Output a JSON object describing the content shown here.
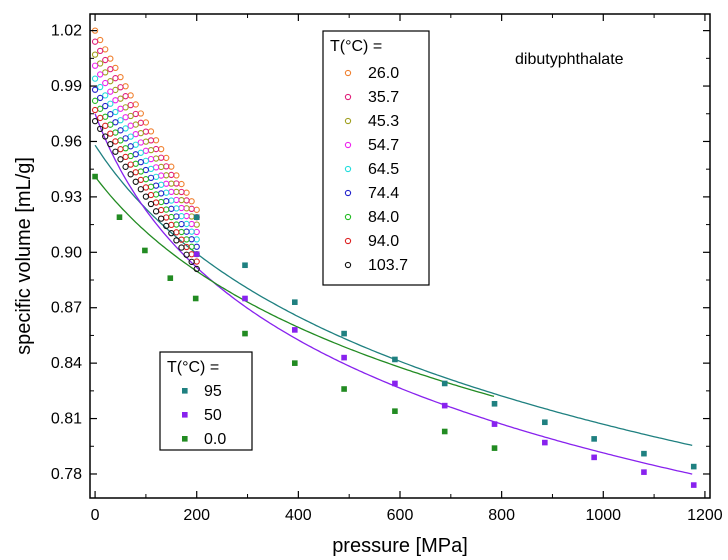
{
  "chart_data": {
    "type": "scatter",
    "title": "",
    "annotation": "dibutyphthalate",
    "xlabel": "pressure  [MPa]",
    "ylabel": "specific volume [mL/g]",
    "xlim": [
      -10,
      1210
    ],
    "ylim": [
      0.767,
      1.029
    ],
    "xticks": [
      0,
      200,
      400,
      600,
      800,
      1000,
      1200
    ],
    "yticks": [
      0.78,
      0.81,
      0.84,
      0.87,
      0.9,
      0.93,
      0.96,
      0.99,
      1.02
    ],
    "ytick_labels": [
      "0.78",
      "0.81",
      "0.84",
      "0.87",
      "0.90",
      "0.93",
      "0.96",
      "0.99",
      "1.02"
    ],
    "grid": false,
    "legends": [
      {
        "title": "T(°C) =",
        "placement": "top-center",
        "entries": [
          "26.0",
          "35.7",
          "45.3",
          "54.7",
          "64.5",
          "74.4",
          "84.0",
          "94.0",
          "103.7"
        ]
      },
      {
        "title": "T(°C) =",
        "placement": "bottom-left",
        "entries": [
          "95",
          "50",
          "0.0"
        ]
      }
    ],
    "open_circle_series": [
      {
        "name": "26.0",
        "color": "#f08030",
        "v0": 1.02,
        "v200": 0.923
      },
      {
        "name": "35.7",
        "color": "#e0207a",
        "v0": 1.014,
        "v200": 0.919
      },
      {
        "name": "45.3",
        "color": "#a0a020",
        "v0": 1.007,
        "v200": 0.915
      },
      {
        "name": "54.7",
        "color": "#ee22ee",
        "v0": 1.001,
        "v200": 0.911
      },
      {
        "name": "64.5",
        "color": "#22dddd",
        "v0": 0.994,
        "v200": 0.907
      },
      {
        "name": "74.4",
        "color": "#2222cc",
        "v0": 0.988,
        "v200": 0.903
      },
      {
        "name": "84.0",
        "color": "#22bb22",
        "v0": 0.982,
        "v200": 0.899
      },
      {
        "name": "94.0",
        "color": "#dd2222",
        "v0": 0.977,
        "v200": 0.895
      },
      {
        "name": "103.7",
        "color": "#111111",
        "v0": 0.971,
        "v200": 0.891
      }
    ],
    "open_circle_pressure_step": 10,
    "square_series": [
      {
        "name": "95",
        "color": "#1f8080",
        "x": [
          200,
          295,
          393,
          490,
          590,
          688,
          786,
          885,
          982,
          1080,
          1178
        ],
        "y": [
          0.919,
          0.893,
          0.873,
          0.856,
          0.842,
          0.829,
          0.818,
          0.808,
          0.799,
          0.791,
          0.784
        ]
      },
      {
        "name": "50",
        "color": "#8822ee",
        "x": [
          200,
          295,
          393,
          490,
          590,
          688,
          786,
          885,
          982,
          1080,
          1178
        ],
        "y": [
          0.899,
          0.875,
          0.858,
          0.843,
          0.829,
          0.817,
          0.807,
          0.797,
          0.789,
          0.781,
          0.774
        ]
      },
      {
        "name": "0.0",
        "color": "#228b22",
        "x": [
          0,
          48,
          98,
          148,
          198,
          295,
          393,
          490,
          590,
          688,
          786
        ],
        "y": [
          0.941,
          0.919,
          0.901,
          0.886,
          0.875,
          0.856,
          0.84,
          0.826,
          0.814,
          0.803,
          0.794
        ]
      }
    ],
    "fit_lines": [
      {
        "color": "#1f8080",
        "v0": 0.958,
        "a": 0.0874,
        "b": 1.97
      },
      {
        "color": "#8822ee",
        "v0": 0.975,
        "a": 0.08,
        "b": 1.05
      },
      {
        "color": "#228b22",
        "v0": 0.941,
        "a": 0.0811,
        "b": 2.09
      }
    ]
  }
}
